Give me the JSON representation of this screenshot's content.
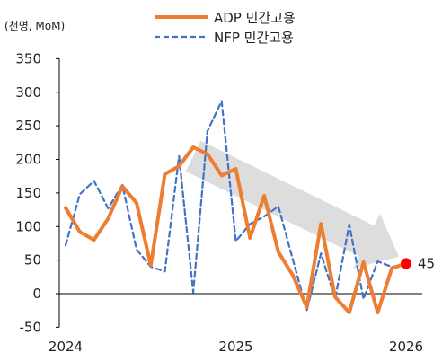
{
  "chart_data": {
    "type": "line",
    "unit_label": "(천명, MoM)",
    "ylim": [
      -50,
      350
    ],
    "yticks": [
      -50,
      0,
      50,
      100,
      150,
      200,
      250,
      300,
      350
    ],
    "xticks": [
      "2024",
      "2025",
      "2026"
    ],
    "grid": false,
    "legend_position": "top-center",
    "series": [
      {
        "name": "ADP 민간고용",
        "color": "#ED7D31",
        "style": "solid",
        "values": [
          128,
          92,
          80,
          112,
          160,
          135,
          42,
          178,
          190,
          218,
          208,
          176,
          186,
          83,
          146,
          62,
          28,
          -20,
          104,
          -5,
          -28,
          47,
          -28,
          38,
          45
        ]
      },
      {
        "name": "NFP 민간고용",
        "color": "#4472C4",
        "style": "dashed",
        "values": [
          72,
          148,
          168,
          127,
          162,
          66,
          40,
          33,
          205,
          2,
          242,
          287,
          78,
          104,
          115,
          130,
          52,
          -25,
          60,
          -8,
          103,
          -8,
          48,
          40,
          42
        ]
      }
    ],
    "trend_arrow": {
      "from": [
        9,
        205
      ],
      "to": [
        24,
        55
      ],
      "color": "#D9D9D9"
    },
    "end_marker": {
      "series_index": 0,
      "label": "45",
      "color": "#FF0000"
    }
  }
}
